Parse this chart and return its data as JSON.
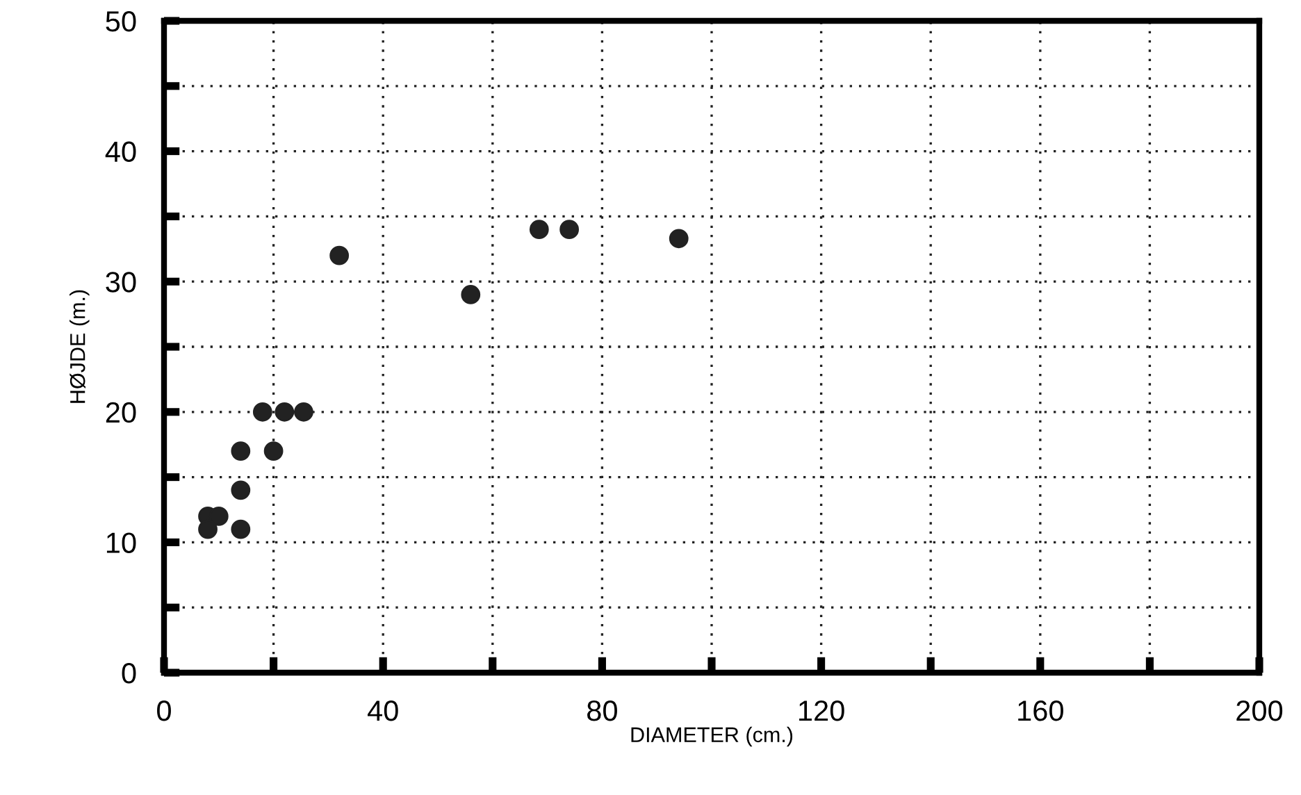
{
  "chart_data": {
    "type": "scatter",
    "xlabel": "DIAMETER (cm.)",
    "ylabel": "HØJDE (m.)",
    "x": [
      32,
      56,
      18,
      22,
      25.5,
      14,
      20,
      14,
      8,
      10,
      8,
      14,
      68.5,
      74,
      94
    ],
    "series": [
      {
        "color": "#222222",
        "values": [
          32,
          29,
          20,
          20,
          20,
          17,
          17,
          14,
          12,
          12,
          11,
          11,
          34,
          34,
          33.3
        ]
      }
    ],
    "xlim": [
      0,
      200
    ],
    "ylim": [
      0,
      50
    ],
    "xticks": [
      0,
      {
        "value": 20,
        "label": null
      },
      40,
      {
        "value": 60,
        "label": null
      },
      80,
      {
        "value": 100,
        "label": null
      },
      120,
      {
        "value": 140,
        "label": null
      },
      160,
      {
        "value": 180,
        "label": null
      },
      200
    ],
    "yticks": [
      0,
      {
        "value": 5,
        "label": null
      },
      10,
      {
        "value": 15,
        "label": null
      },
      20,
      {
        "value": 25,
        "label": null
      },
      30,
      {
        "value": 35,
        "label": null
      },
      40,
      {
        "value": 45,
        "label": null
      },
      50
    ],
    "grid": true,
    "marker": "circle",
    "legend": false
  }
}
